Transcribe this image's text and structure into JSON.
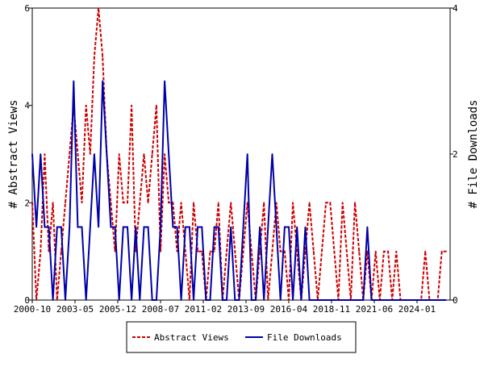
{
  "chart_data": {
    "type": "line",
    "x_tick_labels": [
      "2000-10",
      "2003-05",
      "2005-12",
      "2008-07",
      "2011-02",
      "2013-09",
      "2016-04",
      "2018-11",
      "2021-06",
      "2024-01"
    ],
    "x_range": [
      "2000-10",
      "2026-01"
    ],
    "y_left": {
      "label": "# Abstract Views",
      "range": [
        0,
        6
      ],
      "ticks": [
        "0",
        "2",
        "4",
        "6"
      ]
    },
    "y_right": {
      "label": "# File Downloads",
      "range": [
        0,
        4
      ],
      "ticks": [
        "0",
        "2",
        "4"
      ]
    },
    "grid": false,
    "legend_position": "bottom",
    "colors": {
      "abstract_views": "#cc0000",
      "file_downloads": "#0000aa"
    },
    "series": [
      {
        "name": "Abstract Views",
        "axis": "left",
        "style": "dashed",
        "x": [
          "2000-10",
          "2001-01",
          "2001-04",
          "2001-07",
          "2001-10",
          "2002-01",
          "2002-04",
          "2002-07",
          "2002-10",
          "2003-01",
          "2003-04",
          "2003-07",
          "2003-10",
          "2004-01",
          "2004-04",
          "2004-07",
          "2004-10",
          "2005-01",
          "2005-04",
          "2005-07",
          "2005-10",
          "2006-01",
          "2006-04",
          "2006-07",
          "2006-10",
          "2007-01",
          "2007-04",
          "2007-07",
          "2007-10",
          "2008-01",
          "2008-04",
          "2008-07",
          "2008-10",
          "2009-01",
          "2009-04",
          "2009-07",
          "2009-10",
          "2010-01",
          "2010-04",
          "2010-07",
          "2010-10",
          "2011-01",
          "2011-04",
          "2011-07",
          "2011-10",
          "2012-01",
          "2012-04",
          "2012-07",
          "2012-10",
          "2013-01",
          "2013-04",
          "2013-07",
          "2013-10",
          "2014-01",
          "2014-04",
          "2014-07",
          "2014-10",
          "2015-01",
          "2015-04",
          "2015-07",
          "2015-10",
          "2016-01",
          "2016-04",
          "2016-07",
          "2016-10",
          "2017-01",
          "2017-04",
          "2017-07",
          "2017-10",
          "2018-01",
          "2018-04",
          "2018-07",
          "2018-10",
          "2019-01",
          "2019-04",
          "2019-07",
          "2019-10",
          "2020-01",
          "2020-04",
          "2020-07",
          "2020-10",
          "2021-01",
          "2021-04",
          "2021-07",
          "2021-10",
          "2022-01",
          "2022-04",
          "2022-07",
          "2022-10",
          "2023-01",
          "2023-04",
          "2023-07",
          "2023-10",
          "2024-01",
          "2024-04",
          "2024-07",
          "2024-10",
          "2025-01",
          "2025-04",
          "2025-07",
          "2025-10"
        ],
        "values": [
          2,
          0,
          1,
          3,
          1,
          2,
          0,
          1,
          2,
          3,
          4,
          3,
          2,
          4,
          3,
          5,
          6,
          5,
          3,
          2,
          1,
          3,
          2,
          2,
          4,
          1,
          2,
          3,
          2,
          3,
          4,
          1,
          3,
          2,
          2,
          1,
          2,
          1,
          0,
          2,
          1,
          1,
          0,
          1,
          1,
          2,
          0,
          1,
          2,
          1,
          0,
          1,
          2,
          1,
          0,
          1,
          2,
          0,
          1,
          2,
          1,
          1,
          0,
          2,
          1,
          0,
          1,
          2,
          1,
          0,
          1,
          2,
          2,
          1,
          0,
          2,
          1,
          0,
          2,
          1,
          0,
          1,
          0,
          1,
          0,
          1,
          1,
          0,
          1,
          0,
          0,
          0,
          0,
          0,
          0,
          1,
          0,
          0,
          0,
          1,
          1
        ]
      },
      {
        "name": "File Downloads",
        "axis": "right",
        "style": "solid",
        "x": [
          "2000-10",
          "2001-01",
          "2001-04",
          "2001-07",
          "2001-10",
          "2002-01",
          "2002-04",
          "2002-07",
          "2002-10",
          "2003-01",
          "2003-04",
          "2003-07",
          "2003-10",
          "2004-01",
          "2004-04",
          "2004-07",
          "2004-10",
          "2005-01",
          "2005-04",
          "2005-07",
          "2005-10",
          "2006-01",
          "2006-04",
          "2006-07",
          "2006-10",
          "2007-01",
          "2007-04",
          "2007-07",
          "2007-10",
          "2008-01",
          "2008-04",
          "2008-07",
          "2008-10",
          "2009-01",
          "2009-04",
          "2009-07",
          "2009-10",
          "2010-01",
          "2010-04",
          "2010-07",
          "2010-10",
          "2011-01",
          "2011-04",
          "2011-07",
          "2011-10",
          "2012-01",
          "2012-04",
          "2012-07",
          "2012-10",
          "2013-01",
          "2013-04",
          "2013-07",
          "2013-10",
          "2014-01",
          "2014-04",
          "2014-07",
          "2014-10",
          "2015-01",
          "2015-04",
          "2015-07",
          "2015-10",
          "2016-01",
          "2016-04",
          "2016-07",
          "2016-10",
          "2017-01",
          "2017-04",
          "2017-07",
          "2017-10",
          "2018-01",
          "2018-04",
          "2018-07",
          "2018-10",
          "2019-01",
          "2019-04",
          "2019-07",
          "2019-10",
          "2020-01",
          "2020-04",
          "2020-07",
          "2020-10",
          "2021-01",
          "2021-04",
          "2021-07",
          "2021-10",
          "2022-01",
          "2022-04",
          "2022-07",
          "2022-10",
          "2023-01",
          "2023-04",
          "2023-07",
          "2023-10",
          "2024-01",
          "2024-04",
          "2024-07",
          "2024-10",
          "2025-01",
          "2025-04",
          "2025-07",
          "2025-10"
        ],
        "values": [
          2,
          1,
          2,
          1,
          1,
          0,
          1,
          1,
          0,
          1,
          3,
          1,
          1,
          0,
          1,
          2,
          1,
          3,
          2,
          1,
          1,
          0,
          1,
          1,
          0,
          1,
          0,
          1,
          1,
          0,
          0,
          1,
          3,
          2,
          1,
          1,
          0,
          1,
          1,
          0,
          1,
          1,
          0,
          0,
          1,
          1,
          0,
          0,
          1,
          0,
          0,
          1,
          2,
          0,
          0,
          1,
          0,
          1,
          2,
          1,
          0,
          1,
          1,
          0,
          1,
          0,
          1,
          0,
          0,
          0,
          0,
          0,
          0,
          0,
          0,
          0,
          0,
          0,
          0,
          0,
          0,
          1,
          0,
          0,
          0,
          0,
          0,
          0,
          0,
          0,
          0,
          0,
          0,
          0,
          0,
          0,
          0,
          0,
          0,
          0,
          0
        ]
      }
    ]
  }
}
